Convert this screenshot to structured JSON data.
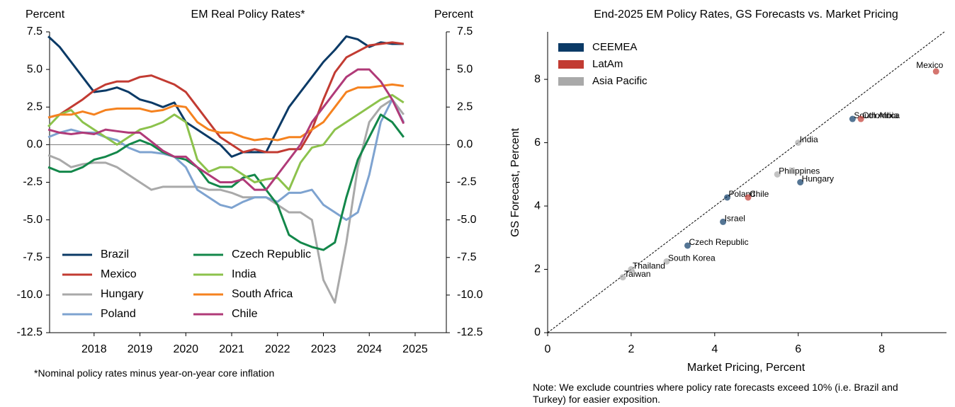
{
  "chart_data": [
    {
      "type": "line",
      "title": "EM Real Policy Rates*",
      "ylabel": "Percent",
      "y2label": "Percent",
      "footnote": "*Nominal policy rates minus year-on-year core inflation",
      "x": [
        2017.0,
        2017.25,
        2017.5,
        2017.75,
        2018.0,
        2018.25,
        2018.5,
        2018.75,
        2019.0,
        2019.25,
        2019.5,
        2019.75,
        2020.0,
        2020.25,
        2020.5,
        2020.75,
        2021.0,
        2021.25,
        2021.5,
        2021.75,
        2022.0,
        2022.25,
        2022.5,
        2022.75,
        2023.0,
        2023.25,
        2023.5,
        2023.75,
        2024.0,
        2024.25,
        2024.5,
        2024.75
      ],
      "xlim": [
        2017.03,
        2025.68
      ],
      "xticks": [
        2018,
        2019,
        2020,
        2021,
        2022,
        2023,
        2024,
        2025
      ],
      "ylim": [
        -12.5,
        7.5
      ],
      "yticks": [
        7.5,
        {
          "value": 5,
          "label": "5.0"
        },
        2.5,
        {
          "value": 0,
          "label": "0.0"
        },
        -2.5,
        {
          "value": -5,
          "label": "-5.0"
        },
        -7.5,
        {
          "value": -10,
          "label": "-10.0"
        },
        -12.5
      ],
      "y2lim": [
        -12.5,
        7.5
      ],
      "y2ticks": [
        7.5,
        {
          "value": 5,
          "label": "5.0"
        },
        2.5,
        {
          "value": 0,
          "label": "0.0"
        },
        -2.5,
        {
          "value": -5,
          "label": "-5.0"
        },
        -7.5,
        {
          "value": -10,
          "label": "-10.0"
        },
        -12.5
      ],
      "zero_line": true,
      "legend": "lower left",
      "series": [
        {
          "name": "Brazil",
          "color": "#0b3a66",
          "values": [
            7.2,
            6.5,
            5.5,
            4.5,
            3.5,
            3.6,
            3.8,
            3.5,
            3.0,
            2.8,
            2.5,
            2.8,
            1.5,
            1.0,
            0.5,
            0.0,
            -0.8,
            -0.5,
            -0.5,
            -0.5,
            1.0,
            2.5,
            3.5,
            4.5,
            5.5,
            6.3,
            7.2,
            7.0,
            6.5,
            6.8,
            6.7,
            6.7
          ]
        },
        {
          "name": "Mexico",
          "color": "#c23b32",
          "values": [
            1.8,
            2.0,
            2.5,
            3.0,
            3.6,
            4.0,
            4.2,
            4.2,
            4.5,
            4.6,
            4.3,
            4.0,
            3.5,
            2.5,
            1.5,
            0.5,
            0.0,
            -0.5,
            -0.3,
            -0.5,
            -0.5,
            -0.3,
            -0.3,
            1.0,
            3.0,
            4.8,
            5.8,
            6.2,
            6.6,
            6.7,
            6.8,
            6.7
          ]
        },
        {
          "name": "Hungary",
          "color": "#a9a9a9",
          "values": [
            -0.7,
            -1.0,
            -1.5,
            -1.3,
            -1.2,
            -1.2,
            -1.5,
            -2.0,
            -2.5,
            -3.0,
            -2.8,
            -2.8,
            -2.8,
            -2.8,
            -3.0,
            -3.0,
            -3.2,
            -3.5,
            -3.5,
            -3.5,
            -4.0,
            -4.5,
            -4.5,
            -5.0,
            -9.0,
            -10.5,
            -6.5,
            -1.5,
            1.5,
            2.5,
            3.0,
            2.0
          ]
        },
        {
          "name": "Poland",
          "color": "#7ea3d0",
          "values": [
            0.5,
            0.8,
            1.0,
            0.8,
            0.8,
            0.5,
            0.3,
            -0.2,
            -0.5,
            -0.5,
            -0.6,
            -0.8,
            -1.5,
            -3.0,
            -3.5,
            -4.0,
            -4.2,
            -3.8,
            -3.5,
            -3.5,
            -3.8,
            -3.2,
            -3.2,
            -3.0,
            -4.0,
            -4.5,
            -5.0,
            -4.5,
            -2.0,
            1.5,
            3.0,
            1.5
          ]
        },
        {
          "name": "Czech Republic",
          "color": "#13874a",
          "values": [
            -1.5,
            -1.8,
            -1.8,
            -1.5,
            -1.0,
            -0.8,
            -0.5,
            0.0,
            0.3,
            0.0,
            -0.5,
            -0.8,
            -1.0,
            -1.5,
            -2.5,
            -2.8,
            -2.8,
            -2.2,
            -2.0,
            -3.0,
            -4.0,
            -6.0,
            -6.5,
            -6.8,
            -7.0,
            -6.5,
            -3.5,
            -1.0,
            0.5,
            2.0,
            1.5,
            0.5
          ]
        },
        {
          "name": "India",
          "color": "#8cc24c",
          "values": [
            1.2,
            2.0,
            2.3,
            1.5,
            1.0,
            0.5,
            0.0,
            0.5,
            1.0,
            1.2,
            1.5,
            2.0,
            1.5,
            -1.0,
            -1.8,
            -1.5,
            -1.5,
            -2.0,
            -2.5,
            -2.3,
            -2.2,
            -3.0,
            -1.2,
            -0.2,
            0.0,
            1.0,
            1.5,
            2.0,
            2.5,
            3.0,
            3.3,
            2.8
          ]
        },
        {
          "name": "South Africa",
          "color": "#f5821f",
          "values": [
            1.8,
            2.0,
            2.0,
            2.2,
            2.0,
            2.3,
            2.4,
            2.4,
            2.4,
            2.2,
            2.3,
            2.6,
            2.5,
            1.5,
            1.0,
            0.8,
            0.8,
            0.5,
            0.3,
            0.4,
            0.3,
            0.5,
            0.5,
            1.0,
            1.5,
            2.5,
            3.5,
            3.8,
            3.8,
            3.9,
            4.0,
            3.9
          ]
        },
        {
          "name": "Chile",
          "color": "#b03a78",
          "values": [
            1.0,
            0.8,
            0.7,
            0.8,
            0.7,
            1.0,
            0.9,
            0.8,
            0.8,
            0.2,
            -0.4,
            -0.8,
            -0.8,
            -1.5,
            -2.0,
            -2.5,
            -2.5,
            -2.3,
            -3.0,
            -3.0,
            -2.0,
            -1.0,
            0.0,
            1.5,
            2.5,
            3.5,
            4.5,
            5.0,
            5.0,
            4.2,
            3.0,
            1.4
          ]
        }
      ]
    },
    {
      "type": "scatter",
      "title": "End-2025 EM Policy Rates, GS Forecasts vs. Market Pricing",
      "xlabel": "Market Pricing, Percent",
      "ylabel": "GS Forecast, Percent",
      "note": "Note: We exclude countries where policy rate forecasts exceed 10% (i.e. Brazil and Turkey) for easier exposition.",
      "xlim": [
        0,
        9.55
      ],
      "xticks": [
        0,
        2,
        4,
        6,
        8
      ],
      "ylim": [
        0,
        9.5
      ],
      "yticks": [
        0,
        2,
        4,
        6,
        8
      ],
      "diagonal": true,
      "legend": "upper left",
      "series": [
        {
          "name": "CEEMEA",
          "color": "#0b3a66",
          "labels": [
            "South Africa",
            "Hungary",
            "Poland",
            "Israel",
            "Czech Republic"
          ],
          "x": [
            7.3,
            6.05,
            4.3,
            4.2,
            3.35
          ],
          "values": [
            6.75,
            4.75,
            4.27,
            3.5,
            2.75
          ]
        },
        {
          "name": "LatAm",
          "color": "#c23b32",
          "labels": [
            "Mexico",
            "Colombia",
            "Chile"
          ],
          "x": [
            9.3,
            7.5,
            4.8
          ],
          "values": [
            8.25,
            6.75,
            4.27
          ]
        },
        {
          "name": "Asia Pacific",
          "color": "#a9a9a9",
          "labels": [
            "India",
            "Philippines",
            "South Korea",
            "Thailand",
            "Taiwan"
          ],
          "x": [
            6.0,
            5.5,
            2.85,
            2.0,
            1.8
          ],
          "values": [
            6.0,
            5.0,
            2.25,
            2.0,
            1.75
          ]
        }
      ]
    }
  ]
}
